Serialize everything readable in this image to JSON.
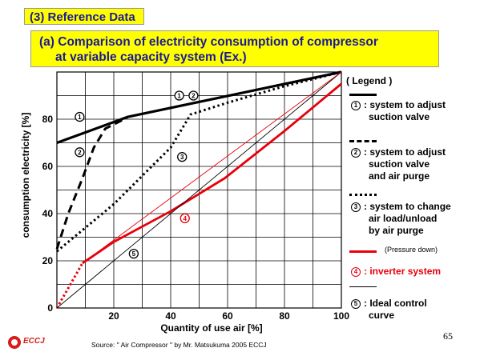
{
  "header": {
    "section_title": "(3) Reference Data",
    "subtitle_line1": "(a) Comparison of electricity consumption of compressor",
    "subtitle_line2": "at variable capacity system (Ex.)"
  },
  "legend": {
    "heading": "( Legend )",
    "items": [
      {
        "marker": "1",
        "lines": [
          "system to adjust",
          "suction valve"
        ],
        "line_style": "solid-thick",
        "color": "#000000"
      },
      {
        "marker": "2",
        "lines": [
          "system to adjust",
          "suction valve",
          "and air purge"
        ],
        "line_style": "dashed",
        "color": "#000000"
      },
      {
        "marker": "3",
        "lines": [
          "system to change",
          "air load/unload",
          "by air purge"
        ],
        "line_style": "dotted",
        "color": "#000000"
      },
      {
        "marker": "4",
        "lines": [
          "inverter system"
        ],
        "line_style": "solid-red",
        "color": "#e8000b",
        "note": "(Pressure down)"
      },
      {
        "marker": "5",
        "lines": [
          "Ideal control",
          "curve"
        ],
        "line_style": "solid-thin",
        "color": "#000000"
      }
    ]
  },
  "chart_data": {
    "type": "line",
    "xlabel": "Quantity of use air [%]",
    "ylabel": "consumption electricity [%]",
    "xlim": [
      0,
      100
    ],
    "ylim": [
      0,
      100
    ],
    "x_ticks": [
      20,
      40,
      60,
      80,
      100
    ],
    "y_ticks": [
      0,
      20,
      40,
      60,
      80
    ],
    "grid": true,
    "series": [
      {
        "marker": "1",
        "style": "solid-thick",
        "color": "#000000",
        "x": [
          0,
          25,
          100
        ],
        "y": [
          70,
          81,
          100
        ]
      },
      {
        "marker": "2",
        "style": "dashed",
        "color": "#000000",
        "x": [
          0,
          4,
          9,
          13,
          17,
          22,
          25
        ],
        "y": [
          25,
          40,
          55,
          68,
          76,
          79,
          81
        ]
      },
      {
        "marker": "3",
        "style": "dotted",
        "color": "#000000",
        "x": [
          0,
          10,
          20,
          30,
          40,
          47,
          60,
          80,
          100
        ],
        "y": [
          24,
          34,
          44,
          56,
          68,
          82,
          87,
          94,
          100
        ]
      },
      {
        "marker": "4",
        "style": "solid-red",
        "color": "#e8000b",
        "x": [
          9,
          20,
          40,
          59,
          80,
          100
        ],
        "y": [
          19,
          28,
          41,
          55,
          75,
          95
        ]
      },
      {
        "marker": "4",
        "style": "dotted-red",
        "color": "#e8000b",
        "x": [
          0,
          9
        ],
        "y": [
          0,
          19
        ]
      },
      {
        "marker": "5",
        "style": "solid-thin",
        "color": "#000000",
        "x": [
          0,
          100
        ],
        "y": [
          0,
          100
        ]
      },
      {
        "marker": "",
        "style": "thin-red",
        "color": "#e8000b",
        "x": [
          9,
          100
        ],
        "y": [
          19,
          100
        ]
      }
    ],
    "annotations": [
      {
        "marker": "1",
        "x": 8,
        "y": 81,
        "color": "#000000"
      },
      {
        "marker": "1",
        "x": 43,
        "y": 90,
        "color": "#000000"
      },
      {
        "marker": "2",
        "x": 48,
        "y": 90,
        "color": "#000000"
      },
      {
        "marker": "2",
        "x": 8,
        "y": 66,
        "color": "#000000"
      },
      {
        "marker": "3",
        "x": 44,
        "y": 64,
        "color": "#000000"
      },
      {
        "marker": "4",
        "x": 45,
        "y": 38,
        "color": "#e8000b"
      },
      {
        "marker": "5",
        "x": 27,
        "y": 23,
        "color": "#000000"
      }
    ]
  },
  "footer": {
    "page_number": "65",
    "source": "Source: \" Air Compressor \" by Mr. Matsukuma  2005 ECCJ",
    "logo_text": "ECCJ"
  }
}
